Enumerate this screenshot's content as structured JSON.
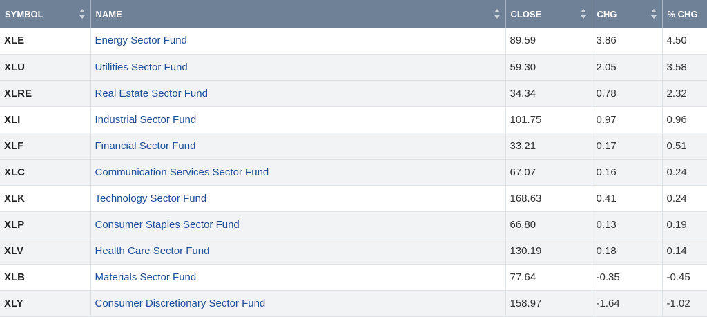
{
  "header": {
    "symbol": "SYMBOL",
    "name": "NAME",
    "close": "CLOSE",
    "chg": "CHG",
    "pct_chg": "% CHG"
  },
  "rows": [
    {
      "symbol": "XLE",
      "name": "Energy Sector Fund",
      "close": "89.59",
      "chg": "3.86",
      "pct_chg": "4.50"
    },
    {
      "symbol": "XLU",
      "name": "Utilities Sector Fund",
      "close": "59.30",
      "chg": "2.05",
      "pct_chg": "3.58"
    },
    {
      "symbol": "XLRE",
      "name": "Real Estate Sector Fund",
      "close": "34.34",
      "chg": "0.78",
      "pct_chg": "2.32"
    },
    {
      "symbol": "XLI",
      "name": "Industrial Sector Fund",
      "close": "101.75",
      "chg": "0.97",
      "pct_chg": "0.96"
    },
    {
      "symbol": "XLF",
      "name": "Financial Sector Fund",
      "close": "33.21",
      "chg": "0.17",
      "pct_chg": "0.51"
    },
    {
      "symbol": "XLC",
      "name": "Communication Services Sector Fund",
      "close": "67.07",
      "chg": "0.16",
      "pct_chg": "0.24"
    },
    {
      "symbol": "XLK",
      "name": "Technology Sector Fund",
      "close": "168.63",
      "chg": "0.41",
      "pct_chg": "0.24"
    },
    {
      "symbol": "XLP",
      "name": "Consumer Staples Sector Fund",
      "close": "66.80",
      "chg": "0.13",
      "pct_chg": "0.19"
    },
    {
      "symbol": "XLV",
      "name": "Health Care Sector Fund",
      "close": "130.19",
      "chg": "0.18",
      "pct_chg": "0.14"
    },
    {
      "symbol": "XLB",
      "name": "Materials Sector Fund",
      "close": "77.64",
      "chg": "-0.35",
      "pct_chg": "-0.45"
    },
    {
      "symbol": "XLY",
      "name": "Consumer Discretionary Sector Fund",
      "close": "158.97",
      "chg": "-1.64",
      "pct_chg": "-1.02"
    }
  ],
  "colors": {
    "header_bg": "#6f8196",
    "link": "#1f4e94",
    "row_shade": "#f1f3f5"
  },
  "icons": {
    "sort": "sort-icon"
  }
}
